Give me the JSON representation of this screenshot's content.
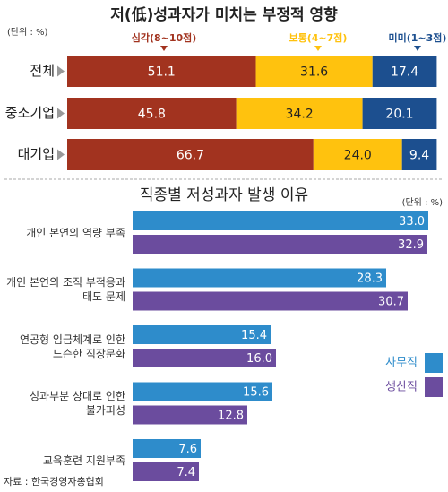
{
  "chart_data": [
    {
      "type": "stacked-bar",
      "title": "저(低)성과자가 미치는 부정적 영향",
      "unit": "(단위 : %)",
      "categories": [
        "전체",
        "중소기업",
        "대기업"
      ],
      "xlim": [
        0,
        100
      ],
      "series": [
        {
          "name": "심각(8~10점)",
          "color": "#a2331f",
          "values": [
            51.1,
            45.8,
            66.7
          ],
          "value_labels": [
            "51.1",
            "45.8",
            "66.7"
          ]
        },
        {
          "name": "보통(4~7점)",
          "color": "#ffc20e",
          "values": [
            31.6,
            34.2,
            24.0
          ],
          "value_labels": [
            "31.6",
            "34.2",
            "24.0"
          ]
        },
        {
          "name": "미미(1~3점)",
          "color": "#1c4f8f",
          "values": [
            17.4,
            20.1,
            9.4
          ],
          "value_labels": [
            "17.4",
            "20.1",
            "9.4"
          ]
        }
      ]
    },
    {
      "type": "grouped-bar",
      "title": "직종별 저성과자 발생 이유",
      "unit": "(단위 : %)",
      "categories": [
        "개인 본연의 역량 부족",
        "개인 본연의 조직 부적응과\n태도 문제",
        "연공형 임금체계로 인한\n느슨한 직장문화",
        "성과부분 상대로 인한\n불가피성",
        "교육훈련 지원부족"
      ],
      "xlim": [
        0,
        35
      ],
      "series": [
        {
          "name": "사무직",
          "color": "#2e8ccb",
          "values": [
            33.0,
            28.3,
            15.4,
            15.6,
            7.6
          ],
          "value_labels": [
            "33.0",
            "28.3",
            "15.4",
            "15.6",
            "7.6"
          ]
        },
        {
          "name": "생산직",
          "color": "#6b4c9e",
          "values": [
            32.9,
            30.7,
            16.0,
            12.8,
            7.4
          ],
          "value_labels": [
            "32.9",
            "30.7",
            "16.0",
            "12.8",
            "7.4"
          ]
        }
      ],
      "legend": "right"
    }
  ],
  "source": "자료 : 한국경영자총협회"
}
